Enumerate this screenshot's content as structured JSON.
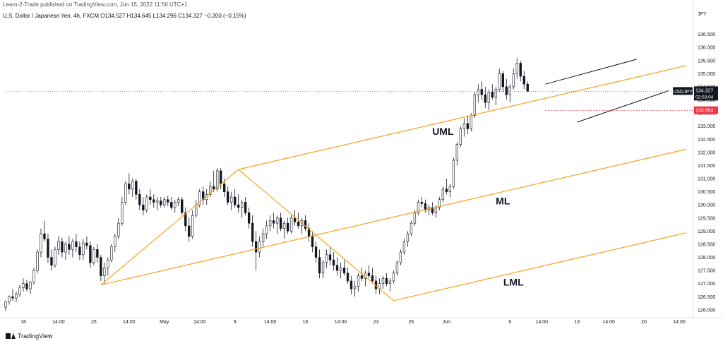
{
  "header": {
    "publisher": "Learn-2-Trade published on TradingView.com, Jun 15, 2022 11:56 UTC+1",
    "symbol_line": "U.S. Dollar / Japanese Yen, 4h, FXCM  O134.527  H134.645  L134.296  C134.327  −0.200 (−0.15%)"
  },
  "brand": {
    "name": "TradingView",
    "icon": "tradingview-logo-icon"
  },
  "colors": {
    "up": "#131722",
    "down": "#131722",
    "pitchfork": "#f7a21b",
    "channel": "#131722",
    "price_tag": "#131722",
    "alert_tag": "#f23645",
    "grid": "#f0f3fa",
    "axis_text": "#131722"
  },
  "chart_data": {
    "type": "candlestick",
    "title": "",
    "currency_label": "JPY",
    "y_range": [
      125.7,
      137.0
    ],
    "y_ticks": [
      126.0,
      126.5,
      127.0,
      127.5,
      128.0,
      128.5,
      129.0,
      129.5,
      130.0,
      130.5,
      131.0,
      131.5,
      132.0,
      132.5,
      133.0,
      133.5,
      134.0,
      134.5,
      135.0,
      135.5,
      136.0,
      136.5
    ],
    "y_tick_labels": [
      "126.000",
      "126.500",
      "127.000",
      "127.500",
      "128.000",
      "128.500",
      "129.000",
      "129.500",
      "130.000",
      "130.500",
      "131.000",
      "131.500",
      "132.000",
      "132.500",
      "133.000",
      "133.500",
      "134.000",
      "134.500",
      "135.000",
      "135.500",
      "136.000",
      "136.500"
    ],
    "x_range": [
      0,
      195
    ],
    "x_ticks": [
      {
        "index": 5,
        "label": "18"
      },
      {
        "index": 15,
        "label": "14:00"
      },
      {
        "index": 25,
        "label": "25"
      },
      {
        "index": 35,
        "label": "14:00"
      },
      {
        "index": 45,
        "label": "May"
      },
      {
        "index": 55,
        "label": "14:00"
      },
      {
        "index": 65,
        "label": "9"
      },
      {
        "index": 75,
        "label": "14:00"
      },
      {
        "index": 85,
        "label": "16"
      },
      {
        "index": 95,
        "label": "14:00"
      },
      {
        "index": 105,
        "label": "23"
      },
      {
        "index": 115,
        "label": "26"
      },
      {
        "index": 125,
        "label": "Jun"
      },
      {
        "index": 143,
        "label": "6"
      },
      {
        "index": 152,
        "label": "14:00"
      },
      {
        "index": 162,
        "label": "13"
      },
      {
        "index": 171,
        "label": "14:00"
      },
      {
        "index": 181,
        "label": "20"
      },
      {
        "index": 191,
        "label": "14:00"
      }
    ],
    "candles": [
      [
        126.1,
        126.35,
        125.95,
        126.3
      ],
      [
        126.3,
        126.55,
        126.2,
        126.5
      ],
      [
        126.5,
        126.8,
        126.35,
        126.45
      ],
      [
        126.45,
        126.7,
        126.3,
        126.6
      ],
      [
        126.6,
        126.95,
        126.5,
        126.85
      ],
      [
        126.85,
        127.2,
        126.7,
        127.0
      ],
      [
        127.0,
        127.15,
        126.7,
        126.8
      ],
      [
        126.8,
        127.1,
        126.6,
        127.05
      ],
      [
        127.05,
        127.6,
        126.95,
        127.5
      ],
      [
        127.5,
        128.3,
        127.4,
        128.2
      ],
      [
        128.2,
        129.1,
        128.0,
        128.9
      ],
      [
        128.9,
        129.4,
        128.6,
        128.7
      ],
      [
        128.7,
        128.9,
        127.8,
        128.0
      ],
      [
        128.0,
        128.3,
        127.5,
        127.7
      ],
      [
        127.7,
        128.4,
        127.6,
        128.3
      ],
      [
        128.3,
        128.8,
        128.1,
        128.6
      ],
      [
        128.6,
        128.75,
        128.0,
        128.2
      ],
      [
        128.2,
        128.6,
        127.9,
        128.5
      ],
      [
        128.5,
        128.8,
        128.1,
        128.3
      ],
      [
        128.3,
        128.7,
        128.0,
        128.6
      ],
      [
        128.6,
        128.9,
        128.2,
        128.4
      ],
      [
        128.4,
        128.6,
        127.9,
        128.1
      ],
      [
        128.1,
        128.7,
        127.9,
        128.55
      ],
      [
        128.55,
        128.8,
        128.3,
        128.45
      ],
      [
        128.45,
        128.6,
        127.6,
        127.8
      ],
      [
        127.8,
        128.4,
        127.7,
        128.3
      ],
      [
        128.3,
        128.5,
        127.8,
        128.0
      ],
      [
        128.0,
        128.1,
        127.1,
        127.3
      ],
      [
        127.3,
        127.8,
        127.0,
        127.6
      ],
      [
        127.6,
        128.0,
        127.3,
        127.9
      ],
      [
        127.9,
        128.5,
        127.8,
        128.4
      ],
      [
        128.4,
        128.9,
        128.2,
        128.8
      ],
      [
        128.8,
        129.5,
        128.7,
        129.3
      ],
      [
        129.3,
        130.3,
        129.2,
        130.1
      ],
      [
        130.1,
        130.9,
        130.0,
        130.8
      ],
      [
        130.8,
        131.2,
        130.4,
        130.6
      ],
      [
        130.6,
        131.0,
        130.3,
        130.9
      ],
      [
        130.9,
        131.0,
        130.2,
        130.4
      ],
      [
        130.4,
        130.6,
        129.8,
        130.0
      ],
      [
        130.0,
        130.3,
        129.6,
        129.8
      ],
      [
        129.8,
        130.4,
        129.7,
        130.3
      ],
      [
        130.3,
        130.6,
        130.0,
        130.2
      ],
      [
        130.2,
        130.4,
        129.9,
        130.1
      ],
      [
        130.1,
        130.3,
        129.8,
        130.15
      ],
      [
        130.15,
        130.3,
        129.9,
        130.0
      ],
      [
        130.0,
        130.3,
        129.9,
        130.2
      ],
      [
        130.2,
        130.35,
        129.95,
        130.1
      ],
      [
        130.1,
        130.3,
        129.8,
        129.9
      ],
      [
        129.9,
        130.2,
        129.7,
        130.1
      ],
      [
        130.1,
        130.3,
        129.95,
        130.2
      ],
      [
        130.2,
        130.3,
        129.6,
        129.7
      ],
      [
        129.7,
        129.9,
        129.0,
        129.2
      ],
      [
        129.2,
        129.5,
        128.6,
        128.8
      ],
      [
        128.8,
        129.8,
        128.7,
        129.6
      ],
      [
        129.6,
        130.2,
        129.5,
        130.0
      ],
      [
        130.0,
        130.6,
        129.9,
        130.5
      ],
      [
        130.5,
        130.7,
        130.0,
        130.2
      ],
      [
        130.2,
        130.6,
        130.0,
        130.4
      ],
      [
        130.4,
        130.9,
        130.3,
        130.7
      ],
      [
        130.7,
        131.3,
        130.5,
        130.6
      ],
      [
        130.6,
        131.4,
        130.5,
        131.3
      ],
      [
        131.3,
        131.4,
        130.6,
        130.8
      ],
      [
        130.8,
        131.0,
        130.3,
        130.5
      ],
      [
        130.5,
        130.7,
        130.0,
        130.1
      ],
      [
        130.1,
        130.5,
        129.8,
        130.3
      ],
      [
        130.3,
        130.6,
        129.9,
        130.0
      ],
      [
        130.0,
        130.4,
        129.7,
        129.9
      ],
      [
        129.9,
        130.2,
        129.5,
        130.1
      ],
      [
        130.1,
        130.3,
        129.6,
        129.7
      ],
      [
        129.7,
        129.9,
        129.1,
        129.3
      ],
      [
        129.3,
        129.6,
        128.4,
        128.6
      ],
      [
        128.6,
        129.0,
        127.5,
        128.2
      ],
      [
        128.2,
        128.8,
        128.0,
        128.6
      ],
      [
        128.6,
        129.1,
        128.4,
        128.9
      ],
      [
        128.9,
        129.4,
        128.7,
        129.2
      ],
      [
        129.2,
        129.6,
        129.0,
        129.4
      ],
      [
        129.4,
        129.7,
        129.1,
        129.3
      ],
      [
        129.3,
        129.6,
        128.9,
        129.5
      ],
      [
        129.5,
        129.7,
        129.0,
        129.1
      ],
      [
        129.1,
        129.4,
        128.7,
        129.3
      ],
      [
        129.3,
        129.5,
        128.9,
        129.0
      ],
      [
        129.0,
        129.6,
        128.9,
        129.5
      ],
      [
        129.5,
        129.8,
        129.2,
        129.35
      ],
      [
        129.35,
        129.7,
        129.1,
        129.2
      ],
      [
        129.2,
        129.5,
        128.9,
        129.4
      ],
      [
        129.4,
        129.6,
        129.0,
        129.1
      ],
      [
        129.1,
        129.3,
        128.6,
        128.8
      ],
      [
        128.8,
        129.0,
        128.2,
        128.4
      ],
      [
        128.4,
        128.6,
        127.8,
        128.0
      ],
      [
        128.0,
        128.3,
        127.2,
        127.4
      ],
      [
        127.4,
        127.9,
        127.2,
        127.8
      ],
      [
        127.8,
        128.3,
        127.6,
        128.1
      ],
      [
        128.1,
        128.4,
        127.7,
        127.9
      ],
      [
        127.9,
        128.2,
        127.5,
        127.7
      ],
      [
        127.7,
        128.0,
        127.3,
        127.5
      ],
      [
        127.5,
        127.8,
        127.2,
        127.6
      ],
      [
        127.6,
        127.9,
        127.3,
        127.4
      ],
      [
        127.4,
        127.6,
        127.0,
        127.1
      ],
      [
        127.1,
        127.3,
        126.6,
        126.8
      ],
      [
        126.8,
        127.1,
        126.5,
        126.9
      ],
      [
        126.9,
        127.4,
        126.7,
        127.3
      ],
      [
        127.3,
        127.6,
        127.1,
        127.2
      ],
      [
        127.2,
        127.5,
        126.9,
        127.4
      ],
      [
        127.4,
        127.7,
        127.2,
        127.3
      ],
      [
        127.3,
        127.6,
        127.0,
        127.1
      ],
      [
        127.1,
        127.3,
        126.6,
        126.8
      ],
      [
        126.8,
        127.2,
        126.6,
        127.0
      ],
      [
        127.0,
        127.3,
        126.8,
        127.2
      ],
      [
        127.2,
        127.4,
        126.9,
        127.0
      ],
      [
        127.0,
        127.2,
        126.7,
        127.1
      ],
      [
        127.1,
        127.5,
        127.0,
        127.4
      ],
      [
        127.4,
        127.9,
        127.3,
        127.8
      ],
      [
        127.8,
        128.3,
        127.7,
        128.2
      ],
      [
        128.2,
        128.7,
        128.1,
        128.6
      ],
      [
        128.6,
        129.0,
        128.4,
        128.9
      ],
      [
        128.9,
        129.4,
        128.8,
        129.3
      ],
      [
        129.3,
        129.8,
        129.2,
        129.7
      ],
      [
        129.7,
        130.2,
        129.6,
        130.1
      ],
      [
        130.1,
        130.3,
        129.9,
        130.05
      ],
      [
        130.05,
        130.2,
        129.7,
        129.8
      ],
      [
        129.8,
        130.0,
        129.6,
        129.9
      ],
      [
        129.9,
        130.1,
        129.6,
        129.7
      ],
      [
        129.7,
        130.0,
        129.5,
        129.9
      ],
      [
        129.9,
        130.3,
        129.8,
        130.2
      ],
      [
        130.2,
        130.7,
        130.1,
        130.6
      ],
      [
        130.6,
        131.0,
        130.4,
        130.5
      ],
      [
        130.5,
        130.8,
        130.3,
        130.7
      ],
      [
        130.7,
        131.8,
        130.6,
        131.7
      ],
      [
        131.7,
        132.4,
        131.5,
        132.3
      ],
      [
        132.3,
        133.0,
        132.2,
        132.9
      ],
      [
        132.9,
        133.3,
        132.6,
        133.1
      ],
      [
        133.1,
        133.4,
        132.7,
        132.9
      ],
      [
        132.9,
        133.5,
        132.8,
        133.4
      ],
      [
        133.4,
        134.3,
        133.3,
        134.2
      ],
      [
        134.2,
        134.6,
        133.9,
        134.4
      ],
      [
        134.4,
        134.7,
        134.0,
        134.2
      ],
      [
        134.2,
        134.5,
        133.7,
        133.9
      ],
      [
        133.9,
        134.4,
        133.6,
        134.3
      ],
      [
        134.3,
        134.6,
        134.0,
        134.1
      ],
      [
        134.1,
        134.5,
        133.8,
        134.4
      ],
      [
        134.4,
        135.2,
        134.3,
        135.0
      ],
      [
        135.0,
        135.1,
        134.3,
        134.5
      ],
      [
        134.5,
        134.8,
        134.0,
        134.2
      ],
      [
        134.2,
        134.6,
        133.9,
        134.5
      ],
      [
        134.5,
        135.2,
        134.4,
        135.0
      ],
      [
        135.0,
        135.6,
        134.8,
        135.4
      ],
      [
        135.4,
        135.5,
        134.7,
        134.9
      ],
      [
        134.9,
        135.1,
        134.4,
        134.6
      ],
      [
        134.6,
        134.7,
        134.296,
        134.327
      ]
    ],
    "drawings": {
      "pitchfork_labels": [
        "UML",
        "ML",
        "LML"
      ],
      "pitchfork_pivots": [
        {
          "i": 27,
          "p": 126.95
        },
        {
          "i": 66,
          "p": 131.35
        },
        {
          "i": 110,
          "p": 126.35
        }
      ],
      "channel_upper": [
        {
          "i": 153,
          "p": 134.6
        },
        {
          "i": 179,
          "p": 135.55
        }
      ],
      "channel_lower": [
        {
          "i": 162,
          "p": 133.15
        },
        {
          "i": 188,
          "p": 134.35
        }
      ]
    },
    "current_price": {
      "label": "USDJPY",
      "value": "134.327",
      "countdown": "02:03:04",
      "price": 134.327
    },
    "alert_level": {
      "value": "133.604",
      "price": 133.604
    }
  }
}
